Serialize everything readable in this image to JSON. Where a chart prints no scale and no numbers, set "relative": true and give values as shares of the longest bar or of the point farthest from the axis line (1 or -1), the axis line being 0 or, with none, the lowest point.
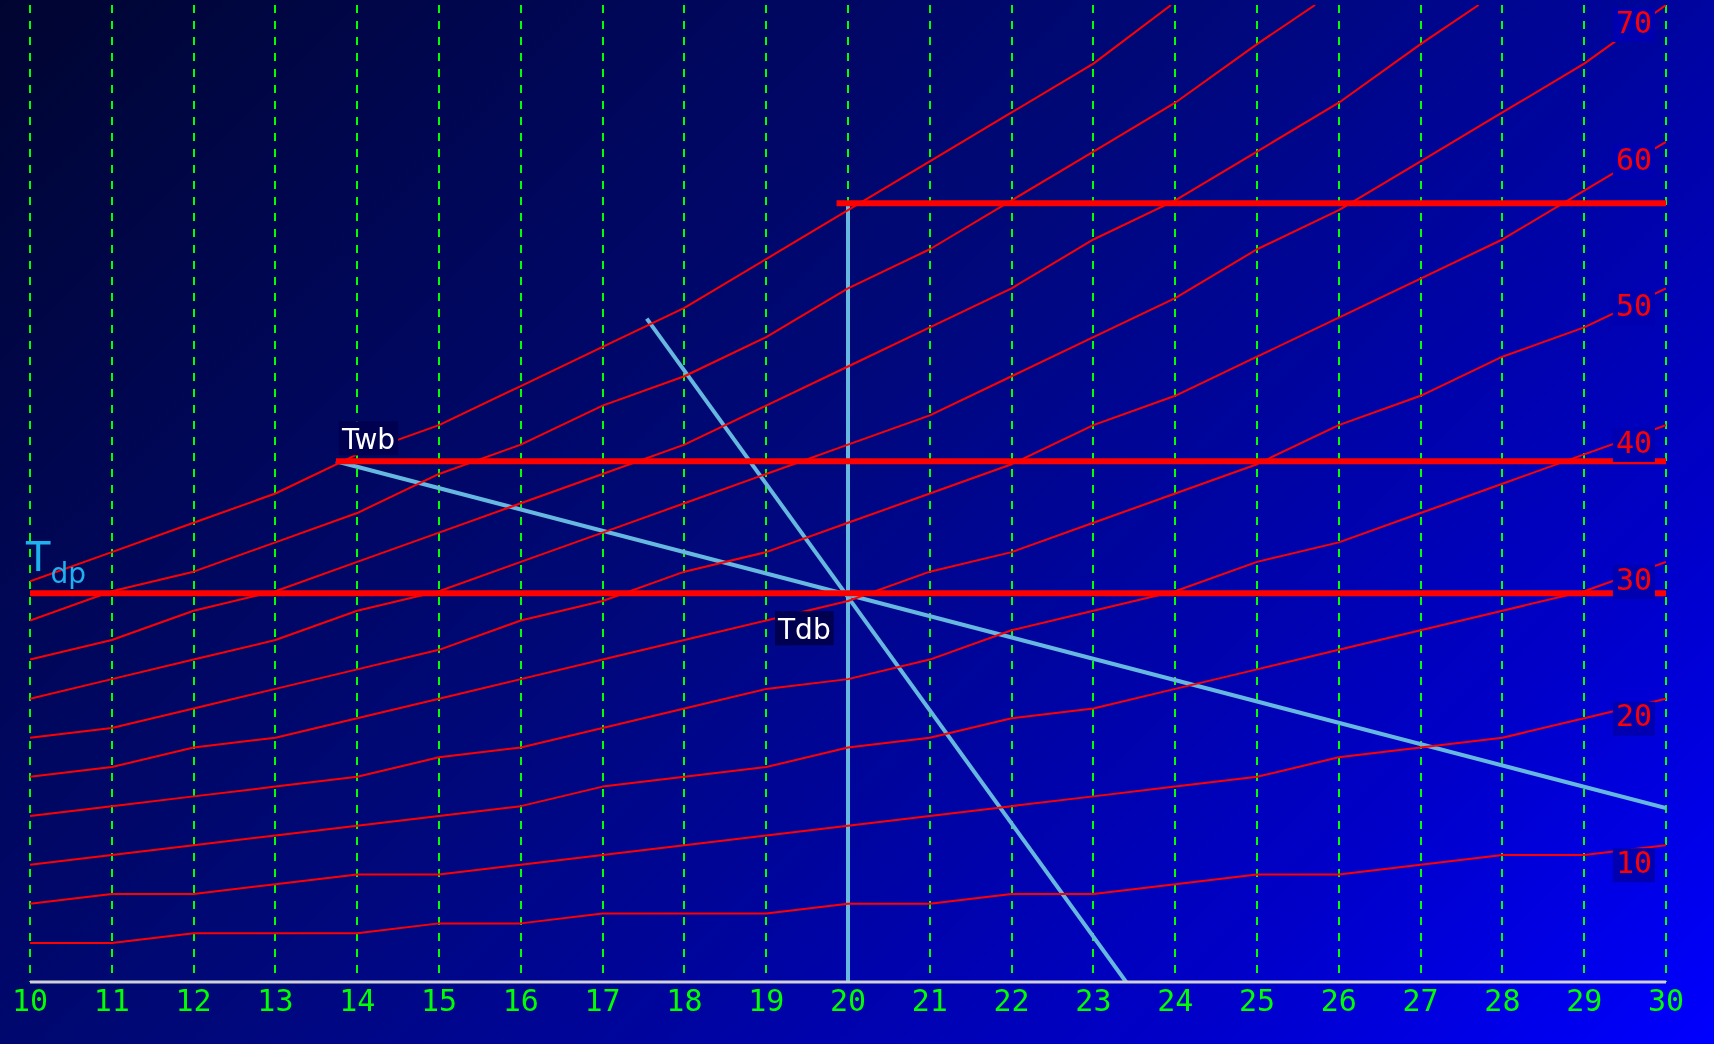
{
  "chart_data": {
    "type": "line",
    "relative": true,
    "xlim": [
      10,
      30
    ],
    "xticks": [
      10,
      11,
      12,
      13,
      14,
      15,
      16,
      17,
      18,
      19,
      20,
      21,
      22,
      23,
      24,
      25,
      26,
      27,
      28,
      29,
      30
    ],
    "grid": "x",
    "marker": "none",
    "series": [
      {
        "color": "#ff0000",
        "x": [
          10,
          11,
          12,
          13,
          14,
          15,
          16,
          17,
          18,
          19,
          20,
          21,
          22,
          23,
          23.95
        ],
        "values": [
          0.41,
          0.44,
          0.47,
          0.5,
          0.54,
          0.57,
          0.61,
          0.65,
          0.69,
          0.74,
          0.79,
          0.84,
          0.89,
          0.94,
          1
        ]
      },
      {
        "color": "#ff0000",
        "x": [
          10,
          11,
          12,
          13,
          14,
          15,
          16,
          17,
          18,
          19,
          20,
          21,
          22,
          23,
          24,
          25,
          25.71
        ],
        "values": [
          0.37,
          0.4,
          0.42,
          0.45,
          0.48,
          0.52,
          0.55,
          0.59,
          0.62,
          0.66,
          0.71,
          0.75,
          0.8,
          0.85,
          0.9,
          0.96,
          1
        ]
      },
      {
        "color": "#ff0000",
        "x": [
          10,
          11,
          12,
          13,
          14,
          15,
          16,
          17,
          18,
          19,
          20,
          21,
          22,
          23,
          24,
          25,
          26,
          27,
          27.71
        ],
        "values": [
          0.33,
          0.35,
          0.38,
          0.4,
          0.43,
          0.46,
          0.49,
          0.52,
          0.55,
          0.59,
          0.63,
          0.67,
          0.71,
          0.76,
          0.8,
          0.85,
          0.9,
          0.96,
          1
        ]
      },
      {
        "name": "70",
        "color": "#ff0000",
        "x": [
          10,
          11,
          12,
          13,
          14,
          15,
          16,
          17,
          18,
          19,
          20,
          21,
          22,
          23,
          24,
          25,
          26,
          27,
          28,
          29,
          30
        ],
        "values": [
          0.29,
          0.31,
          0.33,
          0.35,
          0.38,
          0.4,
          0.43,
          0.46,
          0.49,
          0.52,
          0.55,
          0.58,
          0.62,
          0.66,
          0.7,
          0.75,
          0.79,
          0.84,
          0.89,
          0.94,
          1
        ]
      },
      {
        "name": "60",
        "color": "#ff0000",
        "x": [
          10,
          11,
          12,
          13,
          14,
          15,
          16,
          17,
          18,
          19,
          20,
          21,
          22,
          23,
          24,
          25,
          26,
          27,
          28,
          29,
          30
        ],
        "values": [
          0.25,
          0.26,
          0.28,
          0.3,
          0.32,
          0.34,
          0.37,
          0.39,
          0.42,
          0.44,
          0.47,
          0.5,
          0.53,
          0.57,
          0.6,
          0.64,
          0.68,
          0.72,
          0.76,
          0.81,
          0.86
        ]
      },
      {
        "name": "50",
        "color": "#ff0000",
        "x": [
          10,
          11,
          12,
          13,
          14,
          15,
          16,
          17,
          18,
          19,
          20,
          21,
          22,
          23,
          24,
          25,
          26,
          27,
          28,
          29,
          30
        ],
        "values": [
          0.21,
          0.22,
          0.24,
          0.25,
          0.27,
          0.29,
          0.31,
          0.33,
          0.35,
          0.37,
          0.39,
          0.42,
          0.44,
          0.47,
          0.5,
          0.53,
          0.57,
          0.6,
          0.64,
          0.67,
          0.71
        ]
      },
      {
        "name": "40",
        "color": "#ff0000",
        "x": [
          10,
          11,
          12,
          13,
          14,
          15,
          16,
          17,
          18,
          19,
          20,
          21,
          22,
          23,
          24,
          25,
          26,
          27,
          28,
          29,
          30
        ],
        "values": [
          0.17,
          0.18,
          0.19,
          0.2,
          0.21,
          0.23,
          0.24,
          0.26,
          0.28,
          0.3,
          0.31,
          0.33,
          0.36,
          0.38,
          0.4,
          0.43,
          0.45,
          0.48,
          0.51,
          0.54,
          0.57
        ]
      },
      {
        "name": "30",
        "color": "#ff0000",
        "x": [
          10,
          11,
          12,
          13,
          14,
          15,
          16,
          17,
          18,
          19,
          20,
          21,
          22,
          23,
          24,
          25,
          26,
          27,
          28,
          29,
          30
        ],
        "values": [
          0.12,
          0.13,
          0.14,
          0.15,
          0.16,
          0.17,
          0.18,
          0.2,
          0.21,
          0.22,
          0.24,
          0.25,
          0.27,
          0.28,
          0.3,
          0.32,
          0.34,
          0.36,
          0.38,
          0.4,
          0.43
        ]
      },
      {
        "name": "20",
        "color": "#ff0000",
        "x": [
          10,
          11,
          12,
          13,
          14,
          15,
          16,
          17,
          18,
          19,
          20,
          21,
          22,
          23,
          24,
          25,
          26,
          27,
          28,
          29,
          30
        ],
        "values": [
          0.08,
          0.09,
          0.09,
          0.1,
          0.11,
          0.11,
          0.12,
          0.13,
          0.14,
          0.15,
          0.16,
          0.17,
          0.18,
          0.19,
          0.2,
          0.21,
          0.23,
          0.24,
          0.25,
          0.27,
          0.29
        ]
      },
      {
        "name": "10",
        "color": "#ff0000",
        "x": [
          10,
          11,
          12,
          13,
          14,
          15,
          16,
          17,
          18,
          19,
          20,
          21,
          22,
          23,
          24,
          25,
          26,
          27,
          28,
          29,
          30
        ],
        "values": [
          0.04,
          0.04,
          0.05,
          0.05,
          0.05,
          0.06,
          0.06,
          0.07,
          0.07,
          0.07,
          0.08,
          0.08,
          0.09,
          0.09,
          0.1,
          0.11,
          0.11,
          0.12,
          0.13,
          0.13,
          0.14
        ]
      },
      {
        "color": "#ff0000",
        "x": [
          19.86,
          30
        ],
        "values": [
          0.797,
          0.797
        ]
      },
      {
        "color": "#ff0000",
        "x": [
          13.74,
          30
        ],
        "values": [
          0.533,
          0.533
        ]
      },
      {
        "color": "#ff0000",
        "x": [
          10,
          30
        ],
        "values": [
          0.398,
          0.398
        ]
      },
      {
        "color": "#66b8e0",
        "x": [
          20,
          20
        ],
        "values": [
          0,
          0.797
        ]
      },
      {
        "color": "#66b8e0",
        "x": [
          17.54,
          23.4
        ],
        "values": [
          0.679,
          0
        ]
      },
      {
        "color": "#66b8e0",
        "x": [
          13.74,
          30
        ],
        "values": [
          0.533,
          0.178
        ]
      }
    ],
    "annotations": [
      {
        "text": "Twb",
        "x": 13.74,
        "y": 0.533
      },
      {
        "text": "Tdb",
        "x": 20,
        "y": 0.398
      },
      {
        "text": "T$_{dp}$",
        "x": 10,
        "y": 0.398
      }
    ]
  }
}
